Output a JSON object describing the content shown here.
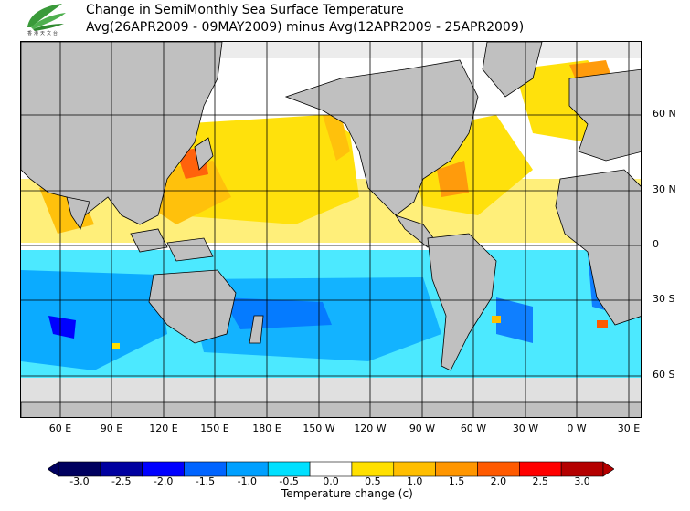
{
  "header": {
    "title_line1": "Change in SemiMonthly Sea Surface Temperature",
    "title_line2": "Avg(26APR2009 - 09MAY2009) minus Avg(12APR2009 - 25APR2009)"
  },
  "logo": {
    "icon": "leaf-logo-icon",
    "text": "香港天文台",
    "color": "#3a9a3a"
  },
  "map": {
    "ocean_color": "#ffffff",
    "land_color": "#c0c0c0",
    "ice_color": "#e0e0e0",
    "lat_labels": [
      "60 N",
      "30 N",
      "0",
      "30 S",
      "60 S"
    ],
    "lon_labels": [
      "60 E",
      "90 E",
      "120 E",
      "150 E",
      "180 E",
      "150 W",
      "120 W",
      "90 W",
      "60 W",
      "30 W",
      "0 W",
      "30 E"
    ]
  },
  "colorbar": {
    "title": "Temperature change (c)",
    "ticks": [
      "-3.0",
      "-2.5",
      "-2.0",
      "-1.5",
      "-1.0",
      "-0.5",
      "0.0",
      "0.5",
      "1.0",
      "1.5",
      "2.0",
      "2.5",
      "3.0"
    ],
    "colors": [
      "#00005f",
      "#0000a0",
      "#0000ff",
      "#0064ff",
      "#00a0ff",
      "#00e0ff",
      "#ffffff",
      "#ffe000",
      "#ffbe00",
      "#ff9600",
      "#ff5a00",
      "#ff0000",
      "#b40000"
    ]
  }
}
